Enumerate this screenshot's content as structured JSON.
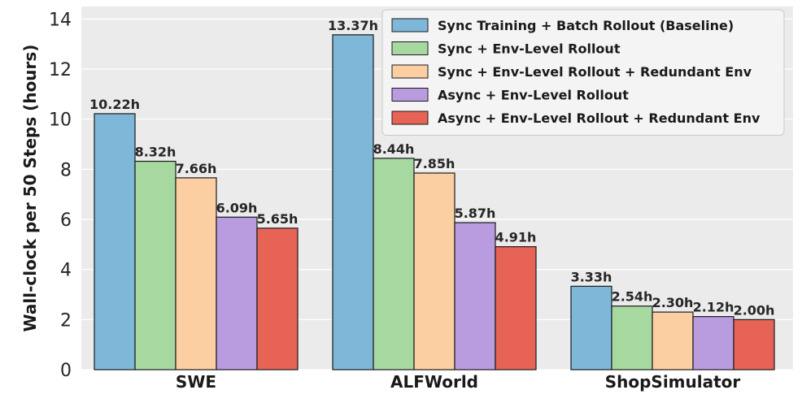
{
  "chart_data": {
    "type": "bar",
    "categories": [
      "SWE",
      "ALFWorld",
      "ShopSimulator"
    ],
    "ylabel": "Wall-clock per 50 Steps (hours)",
    "xlabel": "",
    "ylim": [
      0,
      14.5
    ],
    "yticks": [
      0,
      2,
      4,
      6,
      8,
      10,
      12,
      14
    ],
    "grid": true,
    "legend_position": "top-right",
    "series": [
      {
        "name": "Sync Training + Batch Rollout (Baseline)",
        "color": "#7eb7d8",
        "values": [
          10.22,
          13.37,
          3.33
        ],
        "labels": [
          "10.22h",
          "13.37h",
          "3.33h"
        ]
      },
      {
        "name": "Sync + Env-Level Rollout",
        "color": "#a6d8a0",
        "values": [
          8.32,
          8.44,
          2.54
        ],
        "labels": [
          "8.32h",
          "8.44h",
          "2.54h"
        ]
      },
      {
        "name": "Sync + Env-Level Rollout + Redundant Env",
        "color": "#fbcfa2",
        "values": [
          7.66,
          7.85,
          2.3
        ],
        "labels": [
          "7.66h",
          "7.85h",
          "2.30h"
        ]
      },
      {
        "name": "Async + Env-Level Rollout",
        "color": "#b99be0",
        "values": [
          6.09,
          5.87,
          2.12
        ],
        "labels": [
          "6.09h",
          "5.87h",
          "2.12h"
        ]
      },
      {
        "name": "Async + Env-Level Rollout + Redundant Env",
        "color": "#e66356",
        "values": [
          5.65,
          4.91,
          2.0
        ],
        "labels": [
          "5.65h",
          "4.91h",
          "2.00h"
        ]
      }
    ]
  }
}
